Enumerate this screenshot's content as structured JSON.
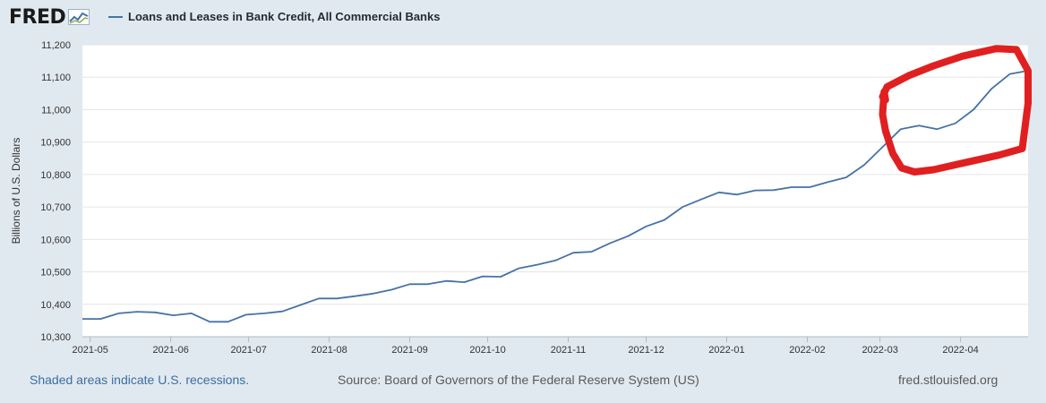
{
  "header": {
    "logo_text": "FRED",
    "logo_icon": "line-graph-icon",
    "legend_label": "Loans and Leases in Bank Credit, All Commercial Banks"
  },
  "footer": {
    "recessions_note": "Shaded areas indicate U.S. recessions.",
    "source": "Source: Board of Governors of the Federal Reserve System (US)",
    "site": "fred.stlouisfed.org"
  },
  "colors": {
    "background": "#e1e9f0",
    "plot_background": "#ffffff",
    "series_line": "#4572a7",
    "annotation": "#e02020",
    "grid": "#e6e6e6"
  },
  "chart_data": {
    "type": "line",
    "title": "",
    "xlabel": "",
    "ylabel": "Billions of U.S. Dollars",
    "ylim": [
      10300,
      11200
    ],
    "yticks": [
      10300,
      10400,
      10500,
      10600,
      10700,
      10800,
      10900,
      11000,
      11100,
      11200
    ],
    "ytick_labels": [
      "10,300",
      "10,400",
      "10,500",
      "10,600",
      "10,700",
      "10,800",
      "10,900",
      "11,000",
      "11,100",
      "11,200"
    ],
    "xlim": [
      "2021-04-28",
      "2022-04-27"
    ],
    "xticks": [
      "2021-05-01",
      "2021-06-01",
      "2021-07-01",
      "2021-08-01",
      "2021-09-01",
      "2021-10-01",
      "2021-11-01",
      "2021-12-01",
      "2022-01-01",
      "2022-02-01",
      "2022-03-01",
      "2022-04-01"
    ],
    "xtick_labels": [
      "2021-05",
      "2021-06",
      "2021-07",
      "2021-08",
      "2021-09",
      "2021-10",
      "2021-11",
      "2021-12",
      "2022-01",
      "2022-02",
      "2022-03",
      "2022-04"
    ],
    "grid": true,
    "legend": "top-left",
    "series": [
      {
        "name": "Loans and Leases in Bank Credit, All Commercial Banks",
        "x": [
          "2021-04-28",
          "2021-05-05",
          "2021-05-12",
          "2021-05-19",
          "2021-05-26",
          "2021-06-02",
          "2021-06-09",
          "2021-06-16",
          "2021-06-23",
          "2021-06-30",
          "2021-07-07",
          "2021-07-14",
          "2021-07-21",
          "2021-07-28",
          "2021-08-04",
          "2021-08-11",
          "2021-08-18",
          "2021-08-25",
          "2021-09-01",
          "2021-09-08",
          "2021-09-15",
          "2021-09-22",
          "2021-09-29",
          "2021-10-06",
          "2021-10-13",
          "2021-10-20",
          "2021-10-27",
          "2021-11-03",
          "2021-11-10",
          "2021-11-17",
          "2021-11-24",
          "2021-12-01",
          "2021-12-08",
          "2021-12-15",
          "2021-12-22",
          "2021-12-29",
          "2022-01-05",
          "2022-01-12",
          "2022-01-19",
          "2022-01-26",
          "2022-02-02",
          "2022-02-09",
          "2022-02-16",
          "2022-02-23",
          "2022-03-02",
          "2022-03-09",
          "2022-03-16",
          "2022-03-23",
          "2022-03-30",
          "2022-04-06",
          "2022-04-13",
          "2022-04-20",
          "2022-04-27"
        ],
        "values": [
          10355,
          10355,
          10372,
          10377,
          10375,
          10366,
          10372,
          10346,
          10346,
          10368,
          10372,
          10378,
          10398,
          10418,
          10418,
          10425,
          10433,
          10445,
          10462,
          10462,
          10472,
          10468,
          10486,
          10485,
          10511,
          10522,
          10535,
          10559,
          10562,
          10588,
          10610,
          10640,
          10660,
          10700,
          10723,
          10745,
          10738,
          10751,
          10752,
          10761,
          10761,
          10777,
          10791,
          10830,
          10885,
          10940,
          10951,
          10940,
          10958,
          11000,
          11065,
          11110,
          11120
        ]
      }
    ],
    "annotation": {
      "type": "hand-drawn circle",
      "color": "#e02020",
      "range": [
        "2022-03-02",
        "2022-04-27"
      ]
    }
  }
}
